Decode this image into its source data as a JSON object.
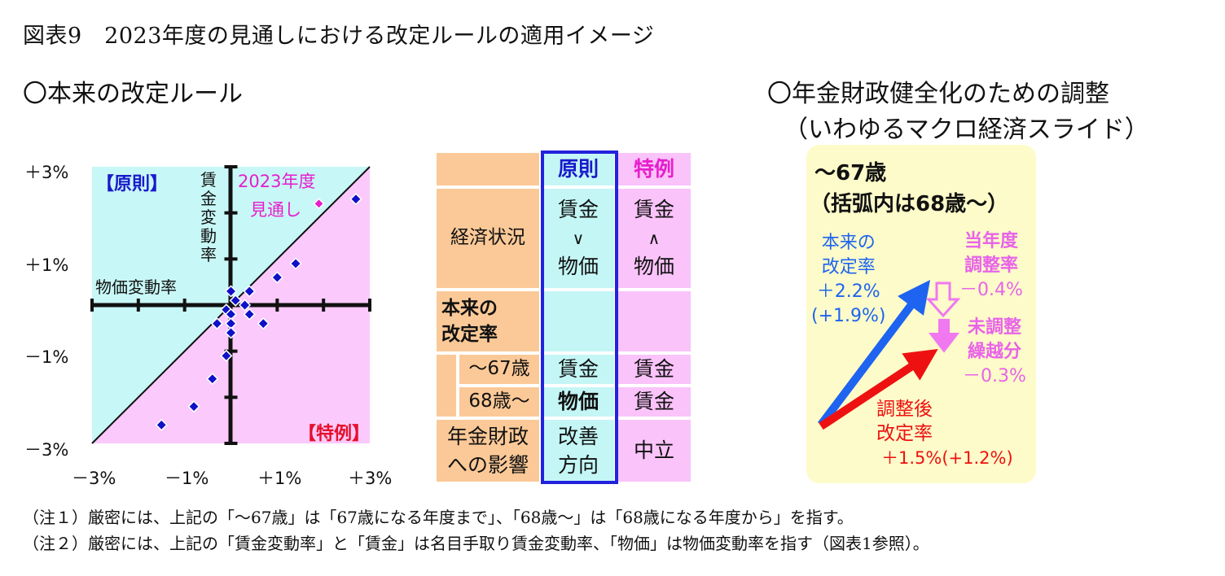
{
  "title": "図表9　2023年度の見通しにおける改定ルールの適用イメージ",
  "left_section_title": "〇本来の改定ルール",
  "right_section_title": [
    "〇年金財政健全化のための調整",
    "（いわゆるマクロ経済スライド）"
  ],
  "chart_data": {
    "type": "scatter",
    "x_axis_label": "物価変動率",
    "y_axis_label": "賃金変動率",
    "x_tick_labels": [
      "－3%",
      "－1%",
      "＋1%",
      "＋3%"
    ],
    "y_tick_labels": [
      "＋3%",
      "＋1%",
      "－1%",
      "－3%"
    ],
    "xlim": [
      -3,
      3
    ],
    "ylim": [
      -3,
      3
    ],
    "region_upper_label": "【原則】",
    "region_lower_label": "【特例】",
    "highlight_label": [
      "2023年度",
      "見通し"
    ],
    "highlight_point": {
      "x": 1.9,
      "y": 2.2
    },
    "points": [
      {
        "x": 2.7,
        "y": 2.3
      },
      {
        "x": 1.4,
        "y": 0.9
      },
      {
        "x": 1.0,
        "y": 0.6
      },
      {
        "x": 0.4,
        "y": 0.3
      },
      {
        "x": 0.3,
        "y": 0.0
      },
      {
        "x": 0.0,
        "y": 0.3
      },
      {
        "x": 0.1,
        "y": 0.1
      },
      {
        "x": -0.1,
        "y": -0.1
      },
      {
        "x": -0.3,
        "y": -0.4
      },
      {
        "x": 0.0,
        "y": -0.2
      },
      {
        "x": 0.0,
        "y": -0.4
      },
      {
        "x": 0.0,
        "y": -0.6
      },
      {
        "x": 0.4,
        "y": -0.2
      },
      {
        "x": 0.7,
        "y": -0.4
      },
      {
        "x": -0.1,
        "y": -1.1
      },
      {
        "x": -0.4,
        "y": -1.6
      },
      {
        "x": -0.8,
        "y": -2.2
      },
      {
        "x": -1.5,
        "y": -2.6
      }
    ],
    "colors": {
      "upper": "#c8f7f7",
      "lower": "#fbc9fb",
      "points": "#1010c8",
      "highlight": "#e61ecd"
    }
  },
  "table": {
    "header": {
      "principle": "原則",
      "exception": "特例"
    },
    "economy": {
      "label": "経済状況",
      "principle": [
        "賃金",
        "∨",
        "物価"
      ],
      "exception": [
        "賃金",
        "∧",
        "物価"
      ]
    },
    "rate_label": [
      "本来の",
      "改定率"
    ],
    "to67": {
      "label": "～67歳",
      "principle": "賃金",
      "exception": "賃金"
    },
    "from68": {
      "label": "68歳～",
      "principle": "物価",
      "exception": "賃金"
    },
    "impact": {
      "label": [
        "年金財政",
        "への影響"
      ],
      "principle": [
        "改善",
        "方向"
      ],
      "exception": "中立"
    }
  },
  "slide_box": {
    "heading": [
      "～67歳",
      "（括弧内は68歳～）"
    ],
    "original_rate": [
      "本来の",
      "改定率",
      "＋2.2%",
      "(+1.9%)"
    ],
    "this_year_adjust": [
      "当年度",
      "調整率",
      "－0.4%"
    ],
    "carryover": [
      "未調整",
      "繰越分",
      "－0.3%"
    ],
    "adjusted_rate": [
      "調整後",
      "改定率",
      "＋1.5%(+1.2%)"
    ]
  },
  "notes": [
    "（注１）厳密には、上記の「～67歳」は「67歳になる年度まで」、「68歳～」は「68歳になる年度から」を指す。",
    "（注２）厳密には、上記の「賃金変動率」と「賃金」は名目手取り賃金変動率、「物価」は物価変動率を指す（図表1参照）。"
  ]
}
